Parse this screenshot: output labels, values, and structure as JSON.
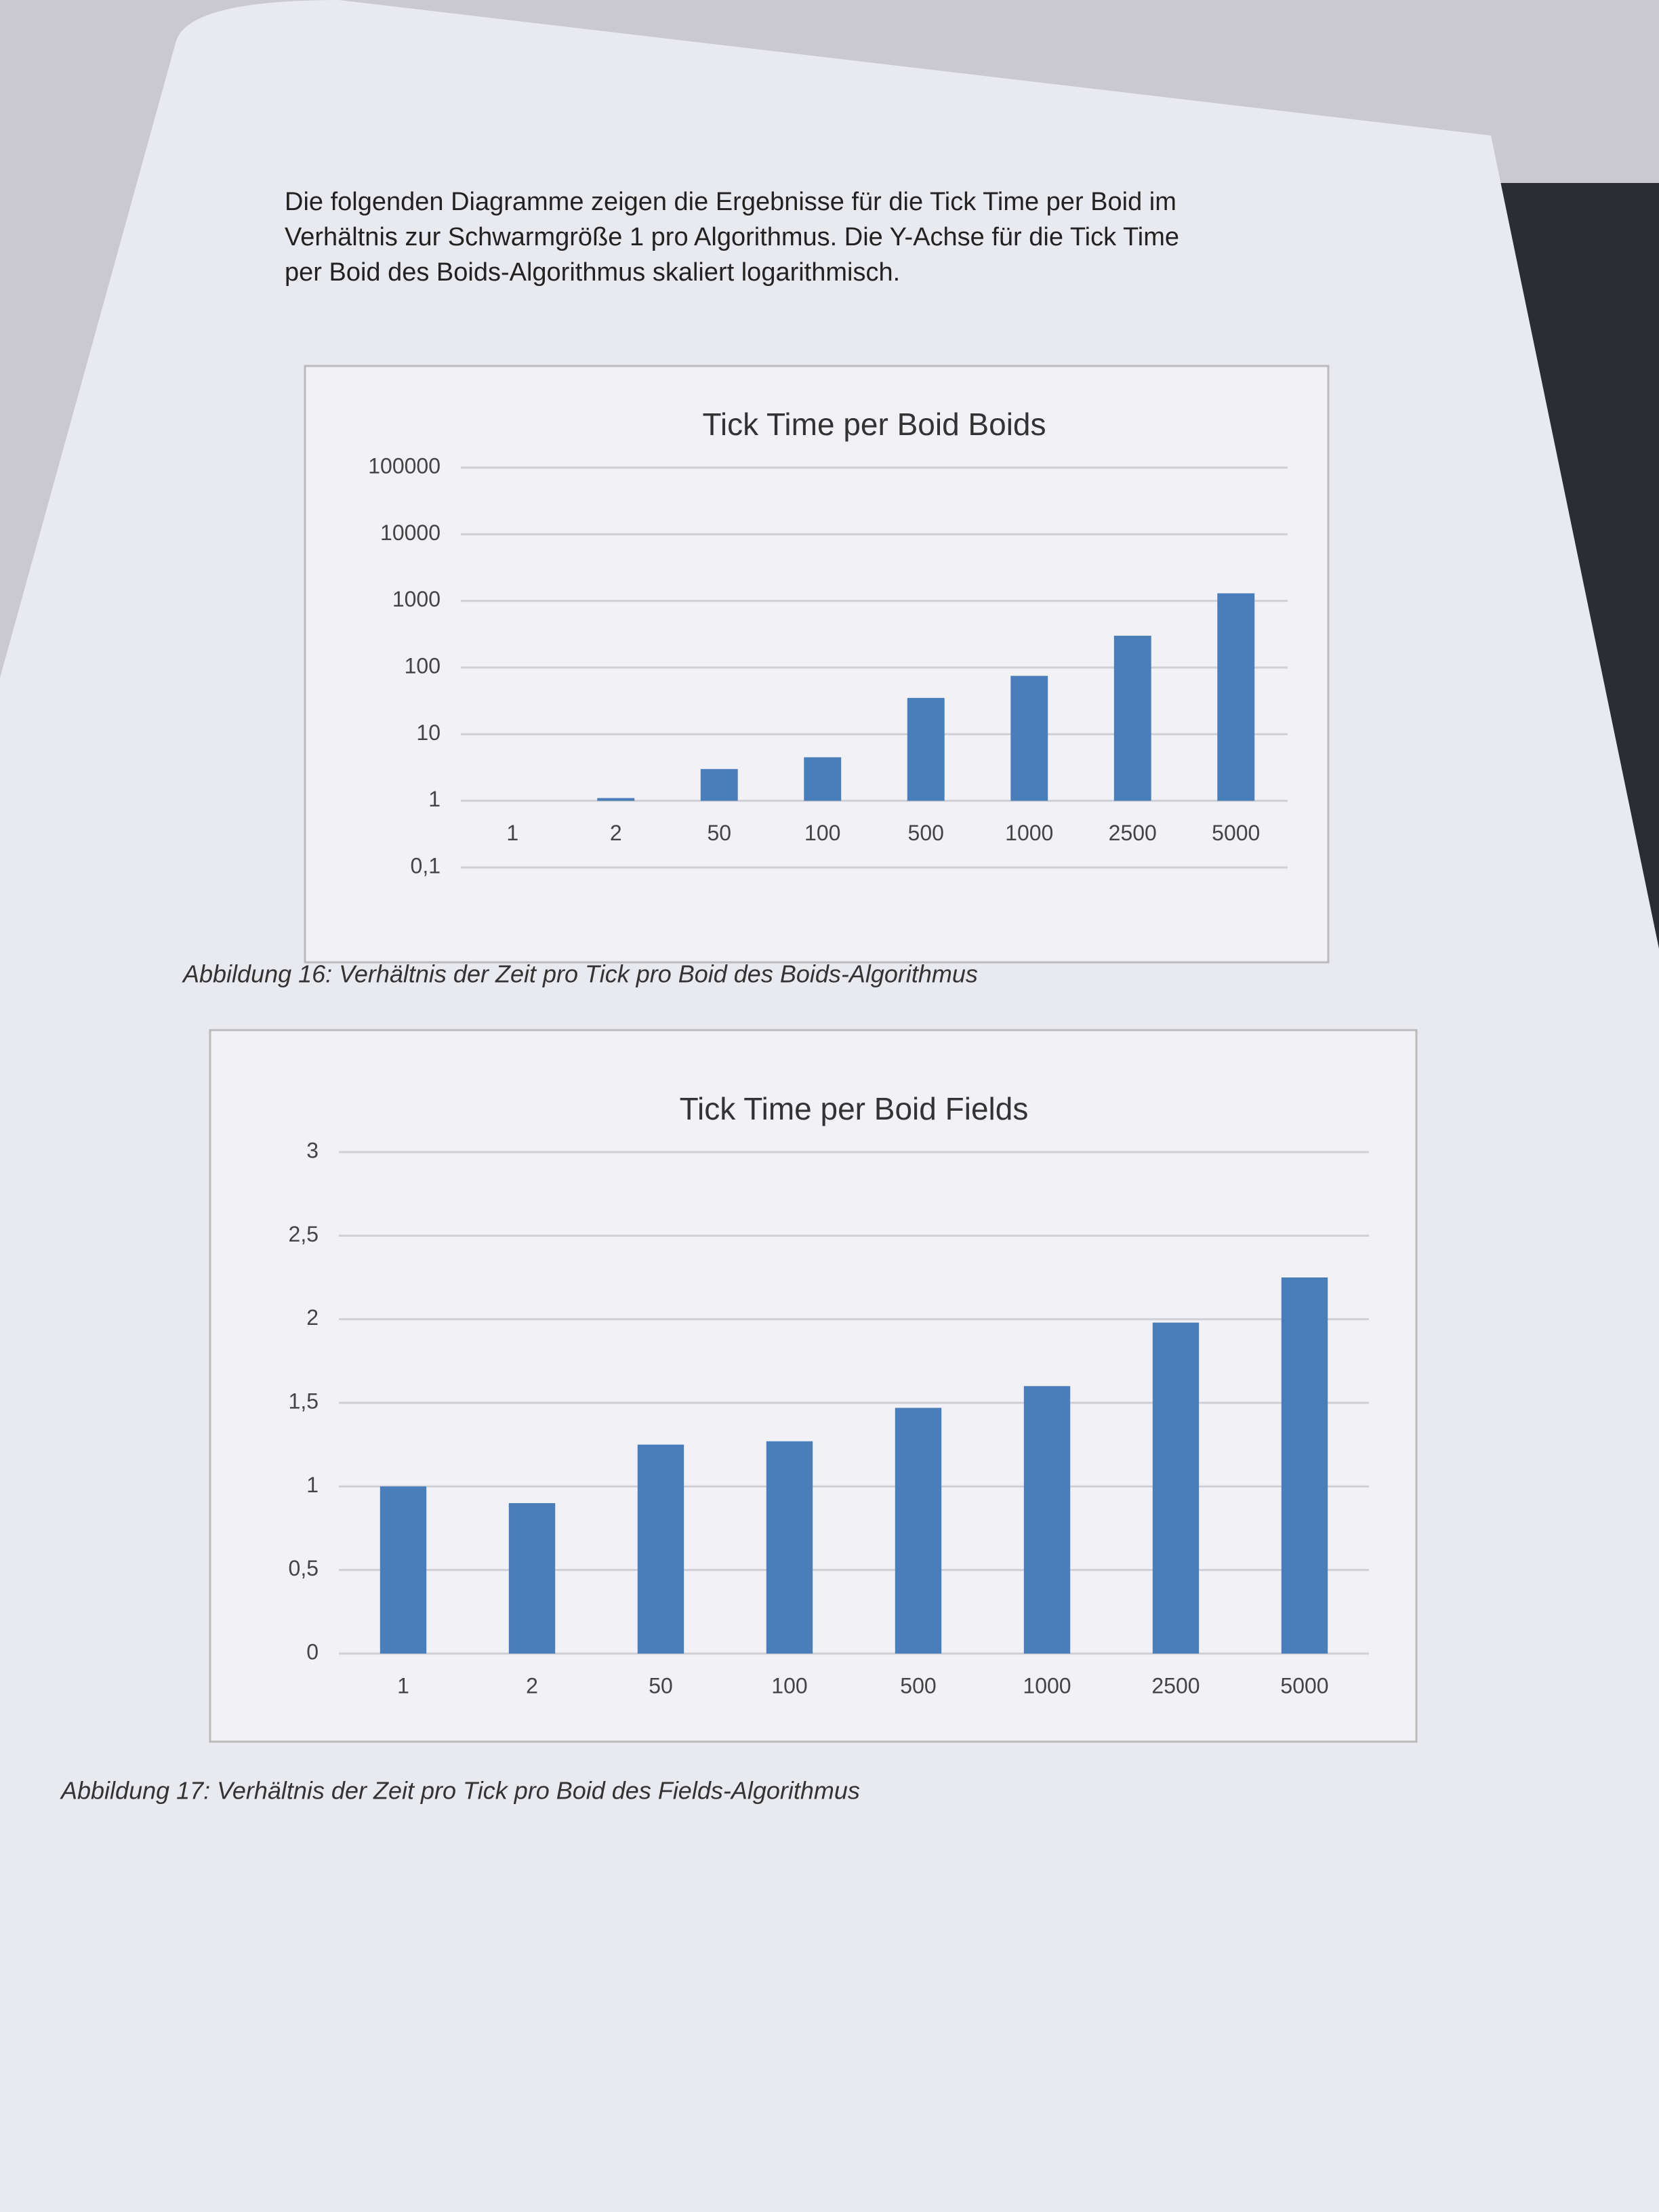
{
  "paragraph": [
    "Die folgenden Diagramme zeigen die Ergebnisse für die Tick Time per Boid im",
    "Verhältnis zur Schwarmgröße 1 pro Algorithmus. Die Y-Achse für die Tick Time",
    "per Boid des Boids-Algorithmus skaliert logarithmisch."
  ],
  "chart_data": [
    {
      "type": "bar",
      "title": "Tick Time per Boid Boids",
      "caption": "Abbildung 16: Verhältnis der Zeit pro Tick pro Boid des Boids-Algorithmus",
      "categories": [
        "1",
        "2",
        "50",
        "100",
        "500",
        "1000",
        "2500",
        "5000"
      ],
      "values": [
        1,
        1.1,
        3,
        4.5,
        35,
        75,
        300,
        1300
      ],
      "color": "#4a7ebb",
      "log_scale": true,
      "ylim": [
        0.1,
        100000
      ],
      "yticks": [
        {
          "value": 0.1,
          "label": "0,1"
        },
        1,
        10,
        100,
        1000,
        10000,
        100000
      ],
      "grid": true
    },
    {
      "type": "bar",
      "title": "Tick Time per Boid Fields",
      "caption": "Abbildung 17: Verhältnis der Zeit pro Tick pro Boid des Fields-Algorithmus",
      "categories": [
        "1",
        "2",
        "50",
        "100",
        "500",
        "1000",
        "2500",
        "5000"
      ],
      "values": [
        1,
        0.9,
        1.25,
        1.27,
        1.47,
        1.6,
        1.98,
        2.25
      ],
      "color": "#4a7ebb",
      "log_scale": false,
      "ylim": [
        0,
        3
      ],
      "yticks": [
        0,
        {
          "value": 0.5,
          "label": "0,5"
        },
        1,
        {
          "value": 1.5,
          "label": "1,5"
        },
        2,
        {
          "value": 2.5,
          "label": "2,5"
        },
        3
      ],
      "grid": true
    }
  ]
}
